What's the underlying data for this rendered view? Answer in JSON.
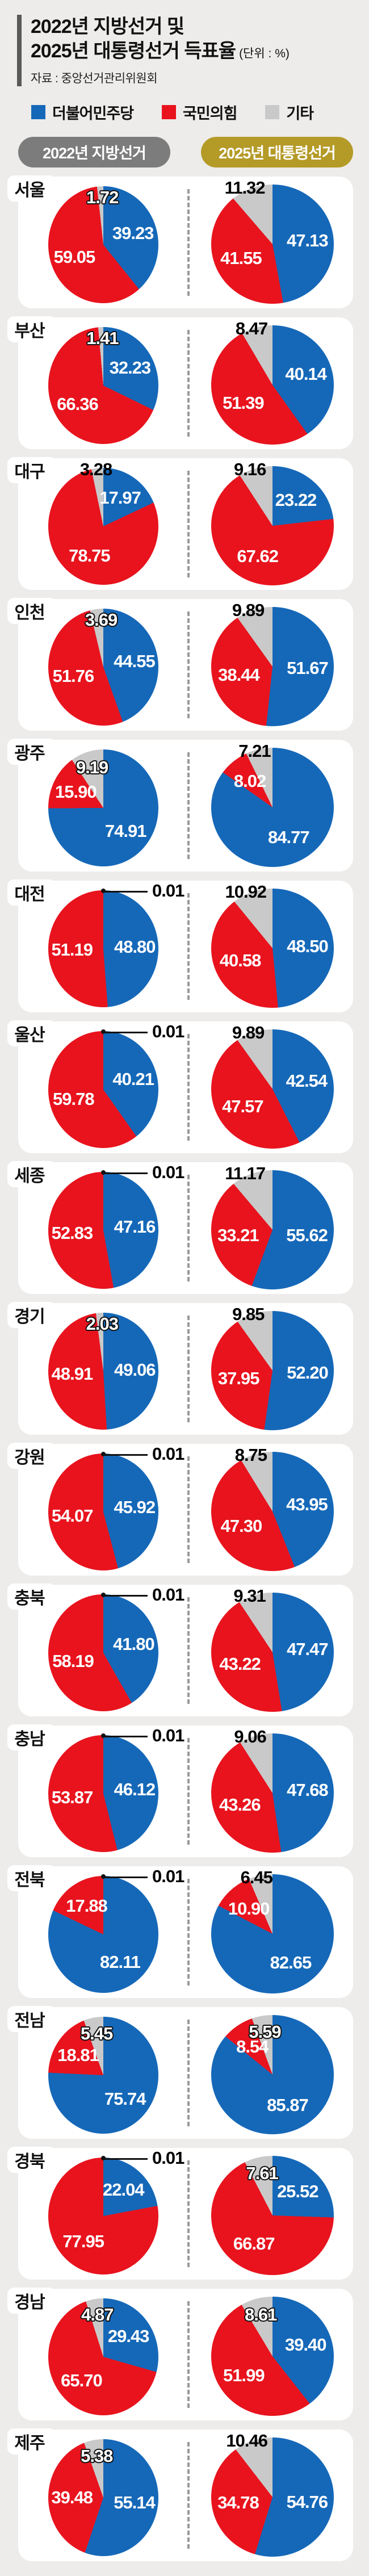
{
  "header": {
    "title_line1": "2022년 지방선거 및",
    "title_line2": "2025년 대통령선거 득표율",
    "unit_note": "(단위 : %)",
    "source": "자료 : 중앙선거관리위원회",
    "legend": [
      {
        "id": "dem",
        "label": "더불어민주당"
      },
      {
        "id": "ppp",
        "label": "국민의힘"
      },
      {
        "id": "etc",
        "label": "기타"
      }
    ],
    "col_2022": "2022년 지방선거",
    "col_2025": "2025년 대통령선거"
  },
  "colors": {
    "dem": "#1568b8",
    "ppp": "#e8131d",
    "etc": "#c9c9c9",
    "pill_2022": "#7c7c7c",
    "pill_2025": "#b49a27",
    "title_bar": "#595959",
    "background": "#edecea",
    "card": "#ffffff"
  },
  "chart_data": {
    "type": "pie",
    "unit": "%",
    "series_names": [
      "더불어민주당",
      "국민의힘",
      "기타"
    ],
    "columns": [
      "2022년 지방선거",
      "2025년 대통령선거"
    ],
    "slice_order_clockwise_from_top": [
      "dem",
      "ppp",
      "etc"
    ],
    "regions": [
      {
        "name": "서울",
        "y2022": {
          "dem": "39.23",
          "ppp": "59.05",
          "etc": "1.72",
          "etc_pos": "top"
        },
        "y2025": {
          "dem": "47.13",
          "ppp": "41.55",
          "etc": "11.32",
          "etc_pos": "above"
        }
      },
      {
        "name": "부산",
        "y2022": {
          "dem": "32.23",
          "ppp": "66.36",
          "etc": "1.41",
          "etc_pos": "top"
        },
        "y2025": {
          "dem": "40.14",
          "ppp": "51.39",
          "etc": "8.47",
          "etc_pos": "above"
        }
      },
      {
        "name": "대구",
        "y2022": {
          "dem": "17.97",
          "ppp": "78.75",
          "etc": "3.28",
          "etc_pos": "above"
        },
        "y2025": {
          "dem": "23.22",
          "ppp": "67.62",
          "etc": "9.16",
          "etc_pos": "above"
        }
      },
      {
        "name": "인천",
        "y2022": {
          "dem": "44.55",
          "ppp": "51.76",
          "etc": "3.69",
          "etc_pos": "top"
        },
        "y2025": {
          "dem": "51.67",
          "ppp": "38.44",
          "etc": "9.89",
          "etc_pos": "above"
        }
      },
      {
        "name": "광주",
        "y2022": {
          "dem": "74.91",
          "ppp": "15.90",
          "etc": "9.19",
          "etc_pos": "inside"
        },
        "y2025": {
          "dem": "84.77",
          "ppp": "8.02",
          "etc": "7.21",
          "etc_pos": "above"
        }
      },
      {
        "name": "대전",
        "y2022": {
          "dem": "48.80",
          "ppp": "51.19",
          "etc": "0.01",
          "etc_pos": "callout"
        },
        "y2025": {
          "dem": "48.50",
          "ppp": "40.58",
          "etc": "10.92",
          "etc_pos": "above"
        }
      },
      {
        "name": "울산",
        "y2022": {
          "dem": "40.21",
          "ppp": "59.78",
          "etc": "0.01",
          "etc_pos": "callout"
        },
        "y2025": {
          "dem": "42.54",
          "ppp": "47.57",
          "etc": "9.89",
          "etc_pos": "above"
        }
      },
      {
        "name": "세종",
        "y2022": {
          "dem": "47.16",
          "ppp": "52.83",
          "etc": "0.01",
          "etc_pos": "callout"
        },
        "y2025": {
          "dem": "55.62",
          "ppp": "33.21",
          "etc": "11.17",
          "etc_pos": "above"
        }
      },
      {
        "name": "경기",
        "y2022": {
          "dem": "49.06",
          "ppp": "48.91",
          "etc": "2.03",
          "etc_pos": "top"
        },
        "y2025": {
          "dem": "52.20",
          "ppp": "37.95",
          "etc": "9.85",
          "etc_pos": "above"
        }
      },
      {
        "name": "강원",
        "y2022": {
          "dem": "45.92",
          "ppp": "54.07",
          "etc": "0.01",
          "etc_pos": "callout"
        },
        "y2025": {
          "dem": "43.95",
          "ppp": "47.30",
          "etc": "8.75",
          "etc_pos": "above"
        }
      },
      {
        "name": "충북",
        "y2022": {
          "dem": "41.80",
          "ppp": "58.19",
          "etc": "0.01",
          "etc_pos": "callout"
        },
        "y2025": {
          "dem": "47.47",
          "ppp": "43.22",
          "etc": "9.31",
          "etc_pos": "above"
        }
      },
      {
        "name": "충남",
        "y2022": {
          "dem": "46.12",
          "ppp": "53.87",
          "etc": "0.01",
          "etc_pos": "callout"
        },
        "y2025": {
          "dem": "47.68",
          "ppp": "43.26",
          "etc": "9.06",
          "etc_pos": "above"
        }
      },
      {
        "name": "전북",
        "y2022": {
          "dem": "82.11",
          "ppp": "17.88",
          "etc": "0.01",
          "etc_pos": "callout"
        },
        "y2025": {
          "dem": "82.65",
          "ppp": "10.90",
          "etc": "6.45",
          "etc_pos": "above"
        }
      },
      {
        "name": "전남",
        "y2022": {
          "dem": "75.74",
          "ppp": "18.81",
          "etc": "5.45",
          "etc_pos": "inside"
        },
        "y2025": {
          "dem": "85.87",
          "ppp": "8.54",
          "etc": "5.59",
          "etc_pos": "inside"
        }
      },
      {
        "name": "경북",
        "y2022": {
          "dem": "22.04",
          "ppp": "77.95",
          "etc": "0.01",
          "etc_pos": "callout"
        },
        "y2025": {
          "dem": "25.52",
          "ppp": "66.87",
          "etc": "7.61",
          "etc_pos": "inside"
        }
      },
      {
        "name": "경남",
        "y2022": {
          "dem": "29.43",
          "ppp": "65.70",
          "etc": "4.87",
          "etc_pos": "inside"
        },
        "y2025": {
          "dem": "39.40",
          "ppp": "51.99",
          "etc": "8.61",
          "etc_pos": "inside"
        }
      },
      {
        "name": "제주",
        "y2022": {
          "dem": "55.14",
          "ppp": "39.48",
          "etc": "5.38",
          "etc_pos": "inside"
        },
        "y2025": {
          "dem": "54.76",
          "ppp": "34.78",
          "etc": "10.46",
          "etc_pos": "above"
        }
      }
    ]
  }
}
